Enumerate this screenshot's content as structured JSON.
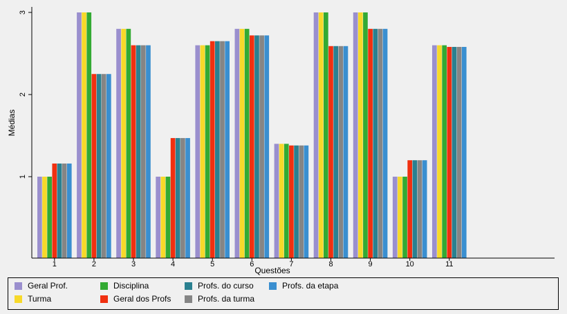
{
  "chart_data": {
    "type": "bar",
    "title": "",
    "xlabel": "Questões",
    "ylabel": "Médias",
    "categories": [
      "1",
      "2",
      "3",
      "4",
      "5",
      "6",
      "7",
      "8",
      "9",
      "10",
      "11"
    ],
    "yticks": [
      "1",
      "2",
      "3"
    ],
    "ytick_values": [
      1,
      2,
      3
    ],
    "ylim": [
      0.1,
      3.05
    ],
    "grid": false,
    "legend_position": "bottom",
    "series": [
      {
        "name": "Geral Prof.",
        "color": "#9a8fce",
        "values": [
          1.0,
          3.0,
          2.8,
          1.0,
          2.6,
          2.8,
          1.4,
          3.0,
          3.0,
          1.0,
          2.6
        ]
      },
      {
        "name": "Turma",
        "color": "#f7d92a",
        "values": [
          1.0,
          3.0,
          2.8,
          1.0,
          2.6,
          2.8,
          1.4,
          3.0,
          3.0,
          1.0,
          2.6
        ]
      },
      {
        "name": "Disciplina",
        "color": "#33aa33",
        "values": [
          1.0,
          3.0,
          2.8,
          1.0,
          2.6,
          2.8,
          1.4,
          3.0,
          3.0,
          1.0,
          2.6
        ]
      },
      {
        "name": "Geral dos Profs",
        "color": "#f03010",
        "values": [
          1.16,
          2.25,
          2.6,
          1.47,
          2.65,
          2.72,
          1.38,
          2.59,
          2.8,
          1.2,
          2.58
        ]
      },
      {
        "name": "Profs. do curso",
        "color": "#2a8090",
        "values": [
          1.16,
          2.25,
          2.6,
          1.47,
          2.65,
          2.72,
          1.38,
          2.59,
          2.8,
          1.2,
          2.58
        ]
      },
      {
        "name": "Profs. da turma",
        "color": "#858585",
        "values": [
          1.16,
          2.25,
          2.6,
          1.47,
          2.65,
          2.72,
          1.38,
          2.59,
          2.8,
          1.2,
          2.58
        ]
      },
      {
        "name": "Profs. da etapa",
        "color": "#3a8fd0",
        "values": [
          1.16,
          2.25,
          2.6,
          1.47,
          2.65,
          2.72,
          1.38,
          2.59,
          2.8,
          1.2,
          2.58
        ]
      }
    ]
  }
}
